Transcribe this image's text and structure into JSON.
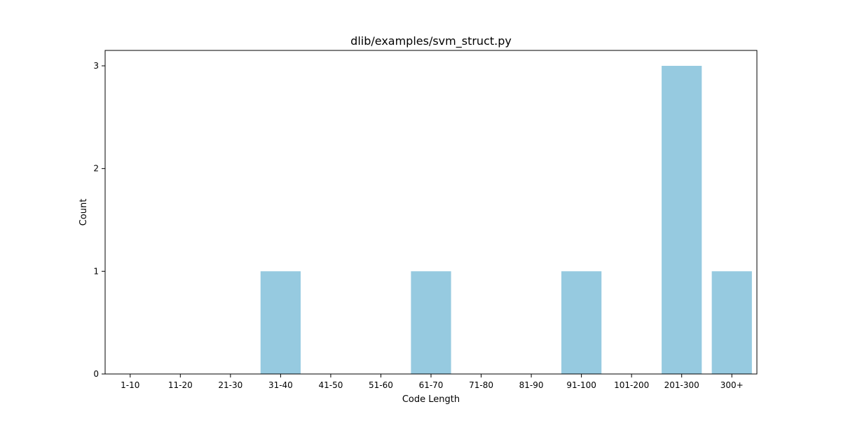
{
  "chart_data": {
    "type": "bar",
    "title": "dlib/examples/svm_struct.py",
    "xlabel": "Code Length",
    "ylabel": "Count",
    "categories": [
      "1-10",
      "11-20",
      "21-30",
      "31-40",
      "41-50",
      "51-60",
      "61-70",
      "71-80",
      "81-90",
      "91-100",
      "101-200",
      "201-300",
      "300+"
    ],
    "values": [
      0,
      0,
      0,
      1,
      0,
      0,
      1,
      0,
      0,
      1,
      0,
      3,
      1
    ],
    "ylim": [
      0,
      3.15
    ],
    "yticks": [
      0,
      1,
      2,
      3
    ],
    "bar_color": "#96CAE0",
    "grid": false,
    "legend": "none"
  }
}
